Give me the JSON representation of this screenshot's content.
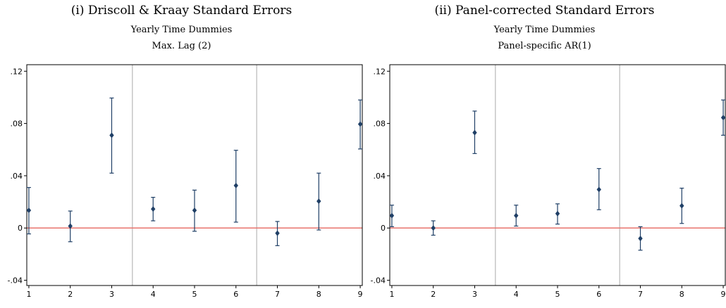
{
  "chart_data": [
    {
      "type": "scatter",
      "title": "(i) Driscoll & Kraay Standard Errors",
      "subtitle": [
        "Yearly Time Dummies",
        "Max. Lag (2)"
      ],
      "xlabel": "",
      "ylabel": "",
      "x": [
        1,
        2,
        3,
        4,
        5,
        6,
        7,
        8,
        9
      ],
      "y_ticks": [
        ".12",
        ".08",
        ".04",
        "0",
        "-.04"
      ],
      "x_ticks": [
        "1",
        "2",
        "3",
        "4",
        "5",
        "6",
        "7",
        "8",
        "9"
      ],
      "ylim": [
        -0.044,
        0.125
      ],
      "xlim": [
        0.95,
        9.05
      ],
      "separators_x": [
        3.5,
        6.5
      ],
      "reference_line_y": 0,
      "series": [
        {
          "values": [
            0.0135,
            0.0015,
            0.071,
            0.0145,
            0.0135,
            0.0325,
            -0.004,
            0.0205,
            0.0795
          ],
          "lower": [
            -0.0045,
            -0.0105,
            0.042,
            0.0055,
            -0.0025,
            0.0045,
            -0.0135,
            -0.0015,
            0.0605
          ],
          "upper": [
            0.031,
            0.013,
            0.0995,
            0.0235,
            0.029,
            0.0595,
            0.005,
            0.042,
            0.098
          ]
        }
      ],
      "grid": false,
      "colors": {
        "marker": "#1f3f66",
        "reference_line": "#e8736d",
        "separator": "#aaaaaa",
        "frame": "#000000"
      }
    },
    {
      "type": "scatter",
      "title": "(ii) Panel-corrected Standard Errors",
      "subtitle": [
        "Yearly Time Dummies",
        "Panel-specific AR(1)"
      ],
      "xlabel": "",
      "ylabel": "",
      "x": [
        1,
        2,
        3,
        4,
        5,
        6,
        7,
        8,
        9
      ],
      "y_ticks": [
        ".12",
        ".08",
        ".04",
        "0",
        "-.04"
      ],
      "x_ticks": [
        "1",
        "2",
        "3",
        "4",
        "5",
        "6",
        "7",
        "8",
        "9"
      ],
      "ylim": [
        -0.044,
        0.125
      ],
      "xlim": [
        0.95,
        9.05
      ],
      "separators_x": [
        3.5,
        6.5
      ],
      "reference_line_y": 0,
      "series": [
        {
          "values": [
            0.0095,
            0.0,
            0.073,
            0.0095,
            0.011,
            0.0295,
            -0.008,
            0.017,
            0.0845
          ],
          "lower": [
            0.001,
            -0.0055,
            0.057,
            0.0015,
            0.003,
            0.014,
            -0.017,
            0.0035,
            0.071
          ],
          "upper": [
            0.0175,
            0.0055,
            0.0895,
            0.0175,
            0.0185,
            0.0455,
            0.001,
            0.0305,
            0.098
          ]
        }
      ],
      "grid": false,
      "colors": {
        "marker": "#1f3f66",
        "reference_line": "#e8736d",
        "separator": "#aaaaaa",
        "frame": "#000000"
      }
    }
  ]
}
